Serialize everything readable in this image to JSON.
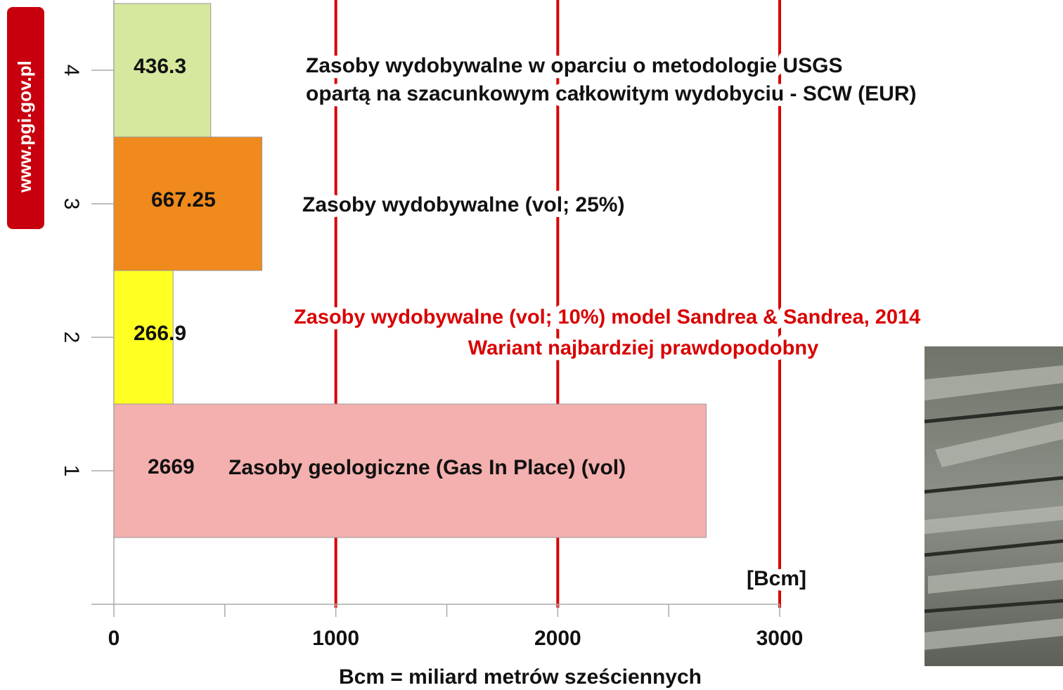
{
  "logo": "www.pgi.gov.pl",
  "chart_data": {
    "type": "bar",
    "orientation": "horizontal",
    "categories": [
      "1",
      "2",
      "3",
      "4"
    ],
    "values": [
      2669,
      266.9,
      667.25,
      436.3
    ],
    "colors": [
      "#f4b0ae",
      "#ffff22",
      "#f08a1c",
      "#d5e89d"
    ],
    "xlim": [
      0,
      3000
    ],
    "xticks": [
      0,
      1000,
      2000,
      3000
    ],
    "grid": true,
    "grid_color": "#d80000",
    "xlabel": "Bcm = miliard metrów sześciennych",
    "annotations": [
      {
        "text": "Zasoby wydobywalne  w oparciu o metodologie  USGS",
        "color": "#111111"
      },
      {
        "text": "opartą na szacunkowym całkowitym  wydobyciu - SCW  (EUR)",
        "color": "#111111"
      },
      {
        "text": "Zasoby wydobywalne  (vol; 25%)",
        "color": "#111111"
      },
      {
        "text": "Zasoby wydobywalne  (vol; 10%) model Sandrea & Sandrea, 2014",
        "color": "#d80000"
      },
      {
        "text": "Wariant najbardziej prawdopodobny",
        "color": "#d80000"
      },
      {
        "text": "Zasoby geologiczne (Gas In Place) (vol)",
        "color": "#111111"
      },
      {
        "text": "[Bcm]",
        "color": "#111111"
      }
    ]
  }
}
